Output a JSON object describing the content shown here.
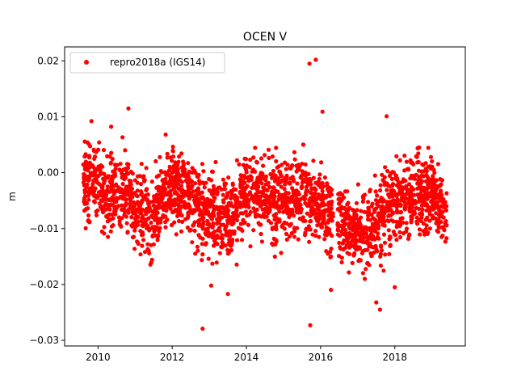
{
  "chart_data": {
    "type": "scatter",
    "title": "OCEN V",
    "xlabel": "",
    "ylabel": "m",
    "xlim": [
      2009.1,
      2019.9
    ],
    "ylim": [
      -0.031,
      0.0225
    ],
    "xticks": [
      2010,
      2012,
      2014,
      2016,
      2018
    ],
    "xtick_labels": [
      "2010",
      "2012",
      "2014",
      "2016",
      "2018"
    ],
    "yticks": [
      -0.03,
      -0.02,
      -0.01,
      0.0,
      0.01,
      0.02
    ],
    "ytick_labels": [
      "−0.03",
      "−0.02",
      "−0.01",
      "0.00",
      "0.01",
      "0.02"
    ],
    "grid": false,
    "legend_position": "top-left",
    "series": [
      {
        "name": "repro2018a (IGS14)",
        "color": "#ff0000",
        "marker": "circle",
        "x_range": [
          2009.6,
          2019.4
        ],
        "trend": [
          [
            2009.6,
            -0.001
          ],
          [
            2010.2,
            -0.003
          ],
          [
            2010.8,
            -0.004
          ],
          [
            2011.4,
            -0.009
          ],
          [
            2012.0,
            -0.002
          ],
          [
            2012.8,
            -0.007
          ],
          [
            2013.5,
            -0.008
          ],
          [
            2014.2,
            -0.003
          ],
          [
            2014.8,
            -0.005
          ],
          [
            2015.5,
            -0.004
          ],
          [
            2016.2,
            -0.007
          ],
          [
            2017.0,
            -0.011
          ],
          [
            2017.5,
            -0.009
          ],
          [
            2018.0,
            -0.005
          ],
          [
            2018.6,
            -0.004
          ],
          [
            2019.0,
            -0.004
          ],
          [
            2019.4,
            -0.008
          ]
        ],
        "spread": 0.0045,
        "outliers": [
          [
            2015.7,
            0.0195
          ],
          [
            2015.87,
            0.0202
          ],
          [
            2012.82,
            -0.0279
          ],
          [
            2015.72,
            -0.0273
          ],
          [
            2013.5,
            -0.0217
          ],
          [
            2013.05,
            -0.0202
          ],
          [
            2017.6,
            -0.0245
          ],
          [
            2017.5,
            -0.0232
          ],
          [
            2018.0,
            -0.0205
          ],
          [
            2010.82,
            0.0115
          ],
          [
            2017.78,
            0.0101
          ],
          [
            2016.05,
            0.0109
          ]
        ]
      }
    ]
  }
}
